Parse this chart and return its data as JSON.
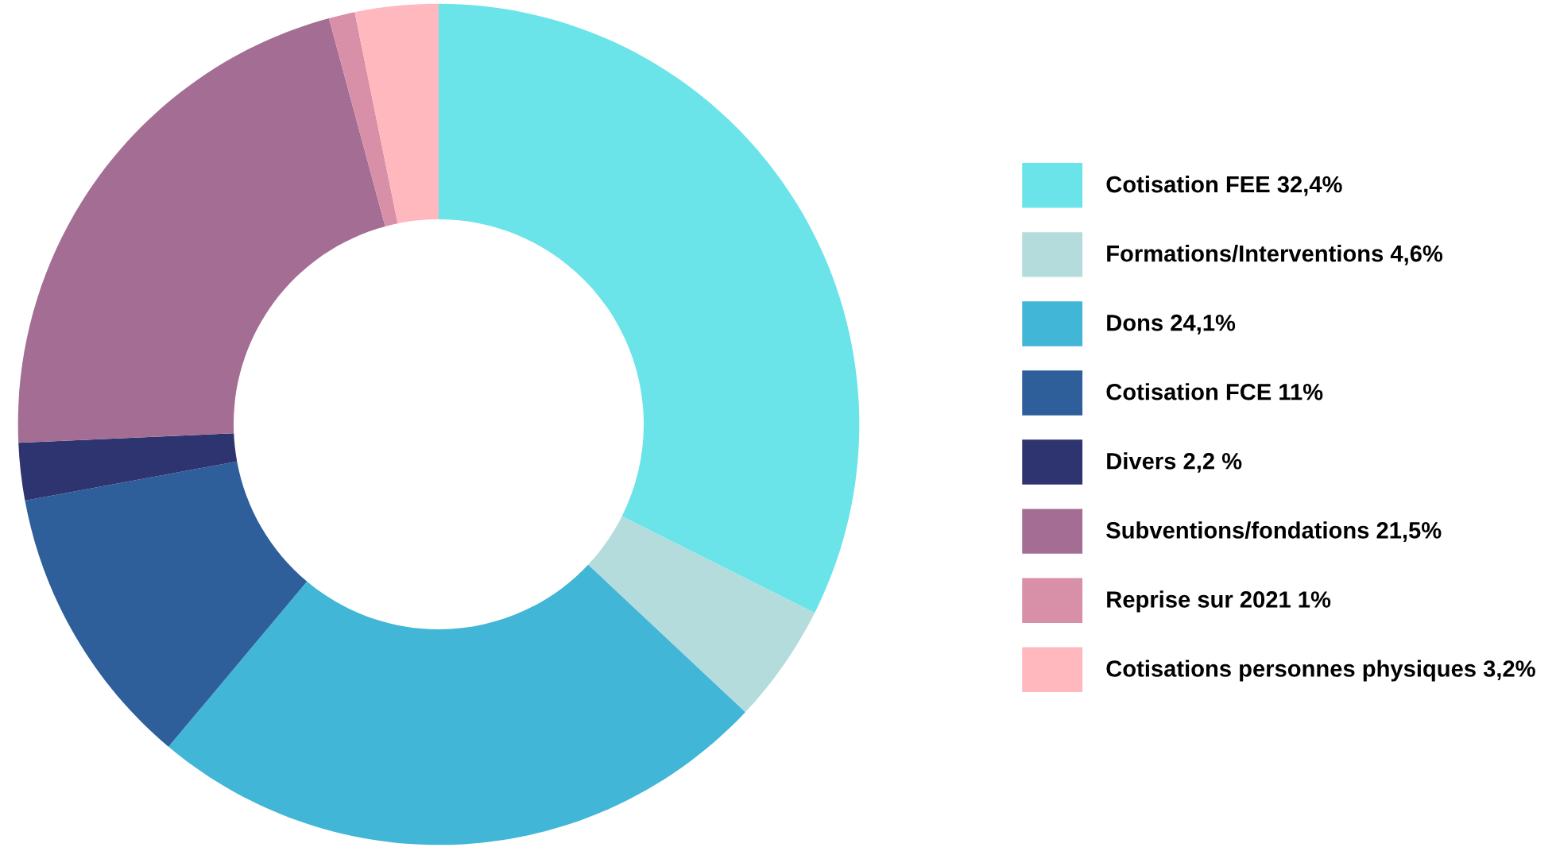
{
  "chart_data": {
    "type": "donut",
    "categories": [
      "Cotisation FEE 32,4%",
      "Formations/Interventions 4,6%",
      "Dons 24,1%",
      "Cotisation FCE 11%",
      "Divers 2,2 %",
      "Subventions/fondations 21,5%",
      "Reprise sur 2021 1%",
      "Cotisations personnes physiques 3,2%"
    ],
    "values": [
      32.4,
      4.6,
      24.1,
      11,
      2.2,
      21.5,
      1,
      3.2
    ],
    "colors": [
      "#6ae4e8",
      "#b4dcdc",
      "#41b6d6",
      "#2e5f9a",
      "#2e3470",
      "#a46d93",
      "#d890a8",
      "#ffb8be"
    ],
    "legend": "right"
  }
}
